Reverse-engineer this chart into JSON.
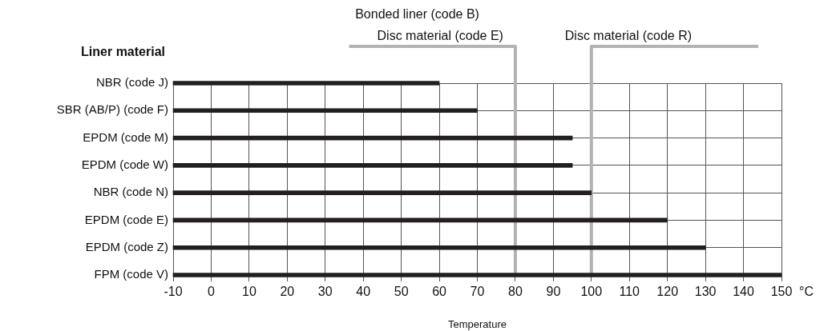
{
  "chart_data": {
    "type": "bar",
    "orientation": "horizontal",
    "ylabel": "Liner material",
    "xlabel": "Temperature",
    "categories": [
      "NBR (code J)",
      "SBR (AB/P) (code F)",
      "EPDM (code M)",
      "EPDM (code W)",
      "NBR (code N)",
      "EPDM (code E)",
      "EPDM (code Z)",
      "FPM (code V)"
    ],
    "values": [
      70,
      80,
      105,
      105,
      110,
      130,
      140,
      160
    ],
    "base": [
      -10,
      -10,
      -10,
      -10,
      -10,
      -10,
      -10,
      -10
    ],
    "color": "#231f20",
    "xlim": [
      -10,
      150
    ],
    "xticks": [
      -10,
      0,
      10,
      20,
      30,
      40,
      50,
      60,
      70,
      80,
      90,
      100,
      110,
      120,
      130,
      140,
      150
    ],
    "grid": true,
    "legend": false,
    "ref_lines": [
      {
        "axis": "x",
        "value": 80,
        "label": "Bonded liner (code B)\nDisc material (code E)",
        "color": "#b3b3b5"
      },
      {
        "axis": "x",
        "value": 100,
        "label": "Disc material (code R)",
        "color": "#b3b3b5"
      }
    ],
    "annotations": [
      "°C"
    ]
  }
}
